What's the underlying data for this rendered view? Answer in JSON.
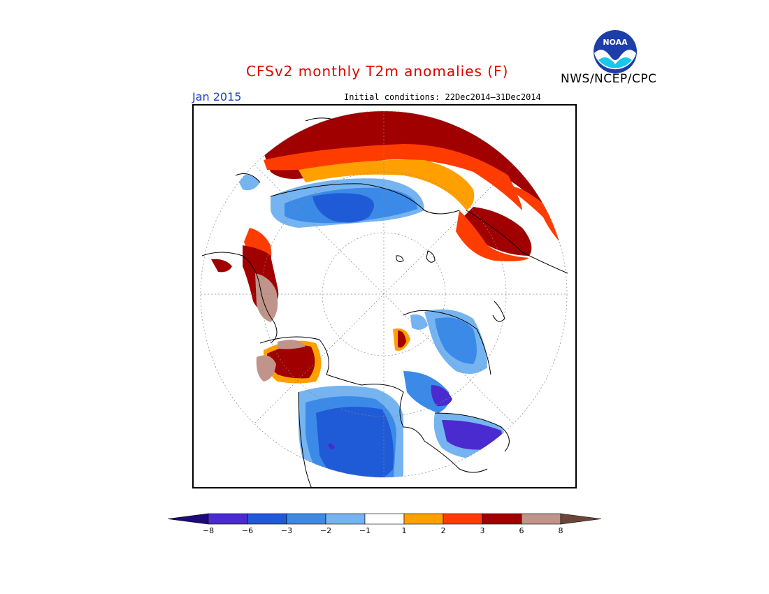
{
  "header": {
    "title": "CFSv2 monthly T2m anomalies (F)",
    "agency": "NWS/NCEP/CPC",
    "logo_text": "NOAA",
    "month": "Jan 2015",
    "initial_conditions": "Initial conditions: 22Dec2014–31Dec2014"
  },
  "colorbar": {
    "low_extend_color": "#1e0a7a",
    "high_extend_color": "#6b4538",
    "bins": [
      {
        "color": "#4a2bd0"
      },
      {
        "color": "#1f5bd6"
      },
      {
        "color": "#3c8ae8"
      },
      {
        "color": "#75b4f0"
      },
      {
        "color": "#ffffff"
      },
      {
        "color": "#ffa000"
      },
      {
        "color": "#ff3c00"
      },
      {
        "color": "#a00000"
      },
      {
        "color": "#c0948a"
      }
    ],
    "tick_labels": [
      "−8",
      "−6",
      "−3",
      "−2",
      "−1",
      "1",
      "2",
      "3",
      "6",
      "8"
    ]
  },
  "map": {
    "projection": "north-polar-stereographic",
    "colors": {
      "warm_6": "#a00000",
      "warm_3": "#ff3c00",
      "warm_2": "#ffa000",
      "warm_8": "#c0948a",
      "cool_2": "#75b4f0",
      "cool_3": "#3c8ae8",
      "cool_6": "#1f5bd6",
      "cool_8": "#4a2bd0"
    }
  }
}
